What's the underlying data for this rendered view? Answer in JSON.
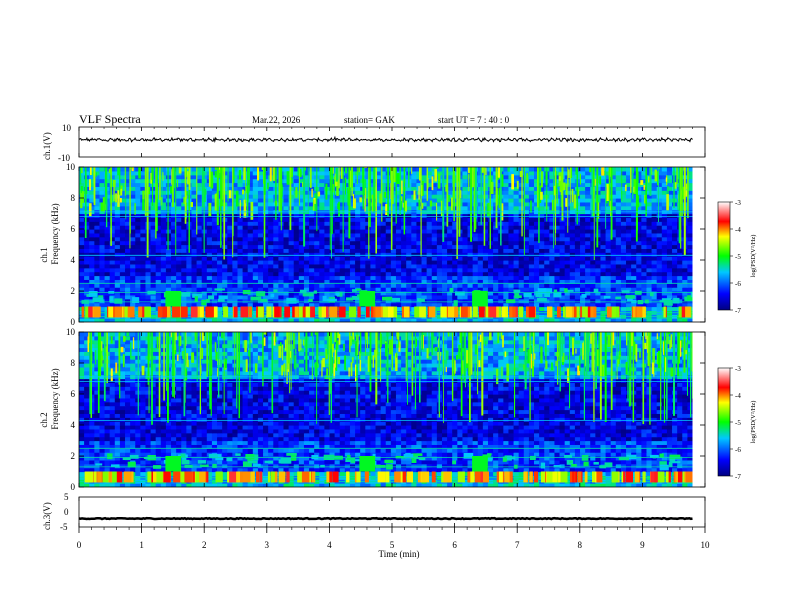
{
  "header": {
    "title": "VLF  Spectra",
    "date": "Mar.22, 2026",
    "station": "station= GAK",
    "start_ut": "start  UT  =   7 : 40 : 0"
  },
  "chart_data": [
    {
      "type": "line",
      "panel": "ch1-waveform",
      "ylabel": "ch.1(V)",
      "ylim": [
        -10,
        10
      ],
      "yticks": [
        "10",
        "-10"
      ],
      "series": [
        {
          "values_description_free": true,
          "mean": 0.3,
          "amplitude": 1.2
        }
      ],
      "x_range": [
        0,
        9.8
      ]
    },
    {
      "type": "heatmap",
      "panel": "ch1-spectrogram",
      "ylabel": "ch.1\nFrequency  (kHz)",
      "ylabel_line1": "ch.1",
      "ylabel_line2": "Frequency  (kHz)",
      "ylim": [
        0,
        10
      ],
      "yticks": [
        "0",
        "2",
        "4",
        "6",
        "8",
        "10"
      ],
      "x_range": [
        0,
        9.8
      ],
      "colorbar": {
        "label": "log(PSD(V²/Hz)",
        "ticks": [
          "-3",
          "-4",
          "-5",
          "-6",
          "-7"
        ],
        "range": [
          -7,
          -3
        ]
      }
    },
    {
      "type": "heatmap",
      "panel": "ch2-spectrogram",
      "ylabel_line1": "ch.2",
      "ylabel_line2": "Frequency  (kHz)",
      "ylim": [
        0,
        10
      ],
      "yticks": [
        "0",
        "2",
        "4",
        "6",
        "8",
        "10"
      ],
      "x_range": [
        0,
        9.8
      ],
      "colorbar": {
        "label": "log(PSD(V²/Hz)",
        "ticks": [
          "-3",
          "-4",
          "-5",
          "-6",
          "-7"
        ],
        "range": [
          -7,
          -3
        ]
      }
    },
    {
      "type": "line",
      "panel": "ch3-waveform",
      "ylabel": "ch.3(V)",
      "ylim": [
        -5,
        5
      ],
      "yticks": [
        "5",
        "0",
        "-5"
      ],
      "x_range": [
        0,
        9.8
      ],
      "series": [
        {
          "mean": -2.2
        }
      ]
    }
  ],
  "x_axis": {
    "label": "Time  (min)",
    "ticks": [
      "0",
      "1",
      "2",
      "3",
      "4",
      "5",
      "6",
      "7",
      "8",
      "9",
      "10"
    ],
    "xlim": [
      0,
      10
    ]
  },
  "colors": {
    "background": "#ffffff",
    "axis": "#000000"
  }
}
